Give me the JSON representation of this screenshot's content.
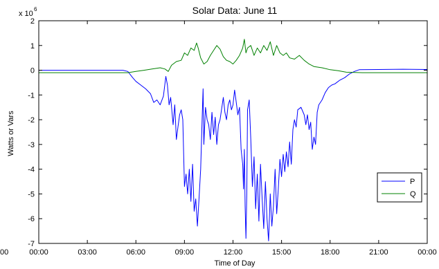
{
  "chart_data": {
    "type": "line",
    "title": "Solar Data: June 11",
    "xlabel": "Time of Day",
    "ylabel": "Watts or Vars",
    "y_multiplier": "x 10",
    "y_multiplier_exponent": "6",
    "xlim": [
      0,
      24
    ],
    "ylim": [
      -7,
      2
    ],
    "x_ticks": [
      {
        "value": 0,
        "label": "00:00"
      },
      {
        "value": 3,
        "label": "03:00"
      },
      {
        "value": 6,
        "label": "06:00"
      },
      {
        "value": 9,
        "label": "09:00"
      },
      {
        "value": 12,
        "label": "12:00"
      },
      {
        "value": 15,
        "label": "15:00"
      },
      {
        "value": 18,
        "label": "18:00"
      },
      {
        "value": 21,
        "label": "21:00"
      },
      {
        "value": 24,
        "label": "00:00"
      }
    ],
    "clipped_left_tick_label": "00",
    "y_ticks": [
      {
        "value": 2,
        "label": "2"
      },
      {
        "value": 1,
        "label": "1"
      },
      {
        "value": 0,
        "label": "0"
      },
      {
        "value": -1,
        "label": "-1"
      },
      {
        "value": -2,
        "label": "-2"
      },
      {
        "value": -3,
        "label": "-3"
      },
      {
        "value": -4,
        "label": "-4"
      },
      {
        "value": -5,
        "label": "-5"
      },
      {
        "value": -6,
        "label": "-6"
      },
      {
        "value": -7,
        "label": "-7"
      }
    ],
    "legend_position": "lower-right",
    "grid": false,
    "series": [
      {
        "name": "P",
        "color": "#0000ff",
        "points": [
          [
            0.0,
            0.0
          ],
          [
            2.0,
            0.0
          ],
          [
            4.0,
            0.0
          ],
          [
            5.2,
            0.0
          ],
          [
            5.5,
            -0.05
          ],
          [
            5.8,
            -0.3
          ],
          [
            6.0,
            -0.45
          ],
          [
            6.3,
            -0.6
          ],
          [
            6.6,
            -0.75
          ],
          [
            6.9,
            -0.95
          ],
          [
            7.1,
            -1.3
          ],
          [
            7.3,
            -1.2
          ],
          [
            7.5,
            -1.4
          ],
          [
            7.7,
            -1.05
          ],
          [
            7.85,
            -0.25
          ],
          [
            7.95,
            -0.6
          ],
          [
            8.05,
            -1.4
          ],
          [
            8.15,
            -1.1
          ],
          [
            8.3,
            -2.2
          ],
          [
            8.4,
            -1.4
          ],
          [
            8.5,
            -2.8
          ],
          [
            8.6,
            -2.3
          ],
          [
            8.7,
            -1.8
          ],
          [
            8.8,
            -1.6
          ],
          [
            8.9,
            -2.0
          ],
          [
            9.0,
            -4.7
          ],
          [
            9.1,
            -4.2
          ],
          [
            9.2,
            -5.0
          ],
          [
            9.3,
            -4.0
          ],
          [
            9.4,
            -5.3
          ],
          [
            9.5,
            -3.8
          ],
          [
            9.6,
            -5.7
          ],
          [
            9.7,
            -5.2
          ],
          [
            9.8,
            -6.3
          ],
          [
            9.9,
            -5.2
          ],
          [
            10.0,
            -4.0
          ],
          [
            10.1,
            -1.8
          ],
          [
            10.15,
            -0.75
          ],
          [
            10.2,
            -3.0
          ],
          [
            10.3,
            -1.5
          ],
          [
            10.4,
            -2.0
          ],
          [
            10.5,
            -2.2
          ],
          [
            10.6,
            -2.8
          ],
          [
            10.7,
            -1.7
          ],
          [
            10.8,
            -2.6
          ],
          [
            10.9,
            -1.9
          ],
          [
            11.0,
            -3.0
          ],
          [
            11.1,
            -2.2
          ],
          [
            11.2,
            -2.0
          ],
          [
            11.4,
            -1.1
          ],
          [
            11.5,
            -1.7
          ],
          [
            11.6,
            -2.0
          ],
          [
            11.7,
            -1.4
          ],
          [
            11.8,
            -1.2
          ],
          [
            11.9,
            -1.6
          ],
          [
            12.0,
            -1.4
          ],
          [
            12.1,
            -0.8
          ],
          [
            12.2,
            -1.3
          ],
          [
            12.3,
            -1.8
          ],
          [
            12.4,
            -1.5
          ],
          [
            12.5,
            -3.2
          ],
          [
            12.6,
            -3.8
          ],
          [
            12.65,
            -4.8
          ],
          [
            12.7,
            -3.2
          ],
          [
            12.75,
            -5.5
          ],
          [
            12.8,
            -6.8
          ],
          [
            12.85,
            -5.0
          ],
          [
            12.9,
            -1.6
          ],
          [
            13.0,
            -1.2
          ],
          [
            13.1,
            -2.8
          ],
          [
            13.2,
            -4.7
          ],
          [
            13.3,
            -3.5
          ],
          [
            13.4,
            -5.6
          ],
          [
            13.5,
            -4.2
          ],
          [
            13.6,
            -6.1
          ],
          [
            13.7,
            -3.8
          ],
          [
            13.8,
            -5.2
          ],
          [
            13.9,
            -6.4
          ],
          [
            14.0,
            -4.5
          ],
          [
            14.1,
            -6.0
          ],
          [
            14.2,
            -6.9
          ],
          [
            14.3,
            -5.0
          ],
          [
            14.4,
            -6.3
          ],
          [
            14.5,
            -5.5
          ],
          [
            14.6,
            -4.0
          ],
          [
            14.7,
            -5.8
          ],
          [
            14.8,
            -4.8
          ],
          [
            14.9,
            -3.6
          ],
          [
            15.0,
            -4.3
          ],
          [
            15.1,
            -3.4
          ],
          [
            15.2,
            -4.1
          ],
          [
            15.3,
            -3.3
          ],
          [
            15.4,
            -3.9
          ],
          [
            15.5,
            -2.9
          ],
          [
            15.6,
            -3.8
          ],
          [
            15.7,
            -2.4
          ],
          [
            15.8,
            -2.0
          ],
          [
            15.9,
            -2.3
          ],
          [
            16.0,
            -1.6
          ],
          [
            16.2,
            -1.5
          ],
          [
            16.4,
            -1.8
          ],
          [
            16.5,
            -2.2
          ],
          [
            16.6,
            -1.8
          ],
          [
            16.7,
            -2.4
          ],
          [
            16.8,
            -2.1
          ],
          [
            16.9,
            -3.2
          ],
          [
            17.0,
            -2.7
          ],
          [
            17.1,
            -3.0
          ],
          [
            17.2,
            -1.7
          ],
          [
            17.3,
            -1.4
          ],
          [
            17.5,
            -1.2
          ],
          [
            17.7,
            -0.9
          ],
          [
            17.9,
            -0.7
          ],
          [
            18.1,
            -0.6
          ],
          [
            18.3,
            -0.55
          ],
          [
            18.6,
            -0.4
          ],
          [
            18.9,
            -0.3
          ],
          [
            19.2,
            -0.15
          ],
          [
            19.5,
            -0.05
          ],
          [
            19.8,
            0.02
          ],
          [
            21.0,
            0.03
          ],
          [
            22.5,
            0.04
          ],
          [
            24.0,
            0.03
          ]
        ]
      },
      {
        "name": "Q",
        "color": "#008000",
        "points": [
          [
            0.0,
            -0.1
          ],
          [
            2.0,
            -0.1
          ],
          [
            4.0,
            -0.1
          ],
          [
            5.5,
            -0.1
          ],
          [
            6.0,
            -0.05
          ],
          [
            6.5,
            0.0
          ],
          [
            7.0,
            0.05
          ],
          [
            7.5,
            0.1
          ],
          [
            7.8,
            0.05
          ],
          [
            8.0,
            -0.05
          ],
          [
            8.2,
            0.2
          ],
          [
            8.5,
            0.35
          ],
          [
            8.8,
            0.4
          ],
          [
            9.0,
            0.7
          ],
          [
            9.2,
            0.6
          ],
          [
            9.4,
            0.9
          ],
          [
            9.6,
            0.8
          ],
          [
            9.75,
            1.1
          ],
          [
            9.85,
            0.9
          ],
          [
            10.0,
            0.5
          ],
          [
            10.2,
            0.25
          ],
          [
            10.4,
            0.35
          ],
          [
            10.6,
            0.6
          ],
          [
            10.8,
            0.8
          ],
          [
            11.0,
            1.0
          ],
          [
            11.2,
            0.85
          ],
          [
            11.4,
            0.55
          ],
          [
            11.6,
            0.4
          ],
          [
            11.8,
            0.35
          ],
          [
            12.0,
            0.25
          ],
          [
            12.2,
            0.4
          ],
          [
            12.4,
            0.6
          ],
          [
            12.6,
            0.9
          ],
          [
            12.7,
            1.25
          ],
          [
            12.8,
            0.7
          ],
          [
            12.9,
            0.9
          ],
          [
            13.1,
            1.0
          ],
          [
            13.3,
            0.6
          ],
          [
            13.5,
            0.9
          ],
          [
            13.7,
            0.7
          ],
          [
            13.9,
            1.0
          ],
          [
            14.1,
            0.8
          ],
          [
            14.3,
            1.15
          ],
          [
            14.5,
            0.6
          ],
          [
            14.7,
            1.0
          ],
          [
            14.9,
            0.7
          ],
          [
            15.1,
            0.6
          ],
          [
            15.3,
            0.7
          ],
          [
            15.5,
            0.5
          ],
          [
            15.8,
            0.45
          ],
          [
            16.1,
            0.6
          ],
          [
            16.4,
            0.4
          ],
          [
            16.7,
            0.25
          ],
          [
            17.0,
            0.15
          ],
          [
            17.5,
            0.1
          ],
          [
            18.0,
            0.02
          ],
          [
            18.5,
            -0.02
          ],
          [
            19.0,
            -0.08
          ],
          [
            20.0,
            -0.1
          ],
          [
            22.0,
            -0.1
          ],
          [
            24.0,
            -0.1
          ]
        ]
      }
    ]
  }
}
